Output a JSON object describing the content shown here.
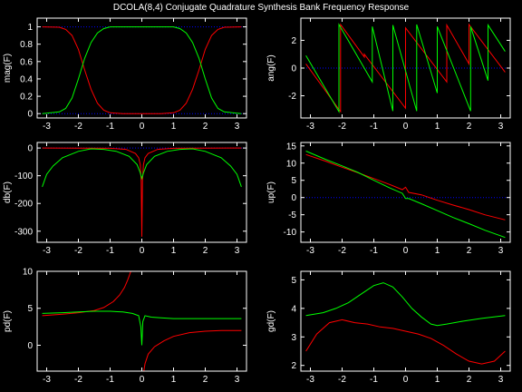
{
  "title": "DCOLA(8,4) Conjugate Quadrature Synthesis Bank Frequency Response",
  "colors": {
    "background": "#000000",
    "axes": "#ffffff",
    "ch0": "#ff0000",
    "ch1": "#00ff00",
    "ref": "#0000ff"
  },
  "chart_data": [
    {
      "id": "mag",
      "type": "line",
      "ylabel": "mag(F)",
      "xlim": [
        -3.3,
        3.3
      ],
      "ylim": [
        -0.05,
        1.1
      ],
      "xticks": [
        -3,
        -2,
        -1,
        0,
        1,
        2,
        3
      ],
      "yticks": [
        0,
        0.2,
        0.4,
        0.6,
        0.8,
        1
      ],
      "ref_lines": [
        0,
        1
      ],
      "series": [
        {
          "color": "red",
          "x": [
            -3.14,
            -2.6,
            -2.4,
            -2.2,
            -2.0,
            -1.8,
            -1.6,
            -1.4,
            -1.2,
            -1.0,
            -0.6,
            0,
            0.6,
            1.0,
            1.2,
            1.4,
            1.6,
            1.8,
            2.0,
            2.2,
            2.4,
            2.6,
            3.14
          ],
          "y": [
            1,
            0.995,
            0.97,
            0.9,
            0.74,
            0.5,
            0.28,
            0.12,
            0.04,
            0.01,
            0,
            0,
            0,
            0.01,
            0.04,
            0.12,
            0.28,
            0.5,
            0.74,
            0.9,
            0.97,
            0.995,
            1
          ]
        },
        {
          "color": "green",
          "x": [
            -3.14,
            -2.6,
            -2.4,
            -2.2,
            -2.0,
            -1.8,
            -1.6,
            -1.4,
            -1.2,
            -1.0,
            -0.6,
            0,
            0.6,
            1.0,
            1.2,
            1.4,
            1.6,
            1.8,
            2.0,
            2.2,
            2.4,
            2.6,
            3.14
          ],
          "y": [
            0,
            0.02,
            0.06,
            0.18,
            0.4,
            0.64,
            0.82,
            0.93,
            0.98,
            1,
            1,
            1,
            1,
            1,
            0.98,
            0.93,
            0.82,
            0.64,
            0.4,
            0.18,
            0.06,
            0.02,
            0
          ]
        }
      ]
    },
    {
      "id": "ang",
      "type": "line",
      "ylabel": "ang(F)",
      "xlim": [
        -3.3,
        3.3
      ],
      "ylim": [
        -3.6,
        3.6
      ],
      "xticks": [
        -3,
        -2,
        -1,
        0,
        1,
        2,
        3
      ],
      "yticks": [
        -2,
        0,
        2
      ],
      "ref_lines": [
        0
      ],
      "series": [
        {
          "color": "red",
          "x": [
            -3.14,
            -2.05,
            -2.05,
            -1.3,
            -1.3,
            0,
            0,
            1.3,
            1.3,
            2.0,
            2.0,
            3.14
          ],
          "y": [
            0.3,
            -3.14,
            3.14,
            0.8,
            1.0,
            -2.9,
            2.9,
            -1.0,
            3.1,
            0.3,
            3.14,
            -0.3
          ]
        },
        {
          "color": "green",
          "x": [
            -3.14,
            -2.1,
            -2.1,
            -1.05,
            -1.05,
            -0.4,
            -0.4,
            0.35,
            0.35,
            1.0,
            1.0,
            2.05,
            2.05,
            2.6,
            2.6,
            3.14
          ],
          "y": [
            0.9,
            -3.14,
            3.14,
            -1.0,
            3.0,
            -3.1,
            3.1,
            -3.1,
            3.14,
            -1.8,
            3.0,
            -3.1,
            3.0,
            -0.9,
            3.1,
            1.2
          ]
        }
      ]
    },
    {
      "id": "db",
      "type": "line",
      "ylabel": "db(F)",
      "xlim": [
        -3.3,
        3.3
      ],
      "ylim": [
        -340,
        20
      ],
      "xticks": [
        -3,
        -2,
        -1,
        0,
        1,
        2,
        3
      ],
      "yticks": [
        -300,
        -200,
        -100,
        0
      ],
      "ref_lines": [
        0
      ],
      "series": [
        {
          "color": "red",
          "x": [
            -3.14,
            -1,
            -0.5,
            -0.2,
            -0.1,
            -0.05,
            -0.02,
            0,
            0.02,
            0.05,
            0.1,
            0.2,
            0.5,
            1,
            3.14
          ],
          "y": [
            0,
            -1,
            -5,
            -20,
            -35,
            -60,
            -120,
            -320,
            -120,
            -60,
            -35,
            -20,
            -5,
            -1,
            0
          ]
        },
        {
          "color": "green",
          "x": [
            -3.14,
            -3.0,
            -2.8,
            -2.5,
            -2.0,
            -1.6,
            -1.2,
            -0.8,
            -0.4,
            -0.15,
            -0.05,
            0,
            0.05,
            0.15,
            0.4,
            0.8,
            1.2,
            1.6,
            2.0,
            2.5,
            2.8,
            3.0,
            3.14
          ],
          "y": [
            -140,
            -95,
            -65,
            -35,
            -12,
            -3,
            -5,
            -12,
            -30,
            -60,
            -90,
            -110,
            -90,
            -60,
            -30,
            -12,
            -5,
            -3,
            -12,
            -35,
            -65,
            -95,
            -140
          ]
        }
      ]
    },
    {
      "id": "up",
      "type": "line",
      "ylabel": "up(F)",
      "xlim": [
        -3.3,
        3.3
      ],
      "ylim": [
        -13,
        16
      ],
      "xticks": [
        -3,
        -2,
        -1,
        0,
        1,
        2,
        3
      ],
      "yticks": [
        -10,
        -5,
        0,
        5,
        10,
        15
      ],
      "ref_lines": [
        0
      ],
      "series": [
        {
          "color": "red",
          "x": [
            -3.14,
            -2.5,
            -2.0,
            -1.5,
            -1.0,
            -0.5,
            -0.1,
            0,
            0.1,
            0.5,
            1.0,
            1.5,
            2.0,
            2.5,
            3.14
          ],
          "y": [
            12.5,
            10.5,
            8.8,
            7.2,
            5.5,
            3.8,
            2.3,
            3.0,
            1.5,
            0.8,
            -0.8,
            -2.2,
            -3.5,
            -5.0,
            -6.5
          ]
        },
        {
          "color": "green",
          "x": [
            -3.14,
            -2.5,
            -2.0,
            -1.5,
            -1.0,
            -0.5,
            -0.1,
            0,
            0.1,
            0.5,
            1.0,
            1.5,
            2.0,
            2.5,
            3.14
          ],
          "y": [
            13.5,
            11,
            9.2,
            7.3,
            5.0,
            2.8,
            1.2,
            -0.3,
            -0.3,
            -1.8,
            -3.8,
            -5.8,
            -7.6,
            -9.5,
            -11.6
          ]
        }
      ]
    },
    {
      "id": "pd",
      "type": "line",
      "ylabel": "pd(F)",
      "xlim": [
        -3.3,
        3.3
      ],
      "ylim": [
        -3.5,
        10
      ],
      "xticks": [
        -3,
        -2,
        -1,
        0,
        1,
        2,
        3
      ],
      "yticks": [
        0,
        5,
        10
      ],
      "ref_lines": [],
      "series": [
        {
          "color": "red",
          "x": [
            -3.14,
            -2.5,
            -2.0,
            -1.5,
            -1.2,
            -0.9,
            -0.7,
            -0.55,
            -0.45,
            -0.38,
            -0.33
          ],
          "y": [
            4.0,
            4.2,
            4.4,
            4.7,
            5.1,
            5.9,
            6.8,
            7.8,
            8.8,
            9.6,
            10.2
          ]
        },
        {
          "color": "red",
          "x": [
            0.05,
            0.1,
            0.2,
            0.4,
            0.7,
            1.0,
            1.5,
            2.0,
            2.5,
            3.14
          ],
          "y": [
            -3.8,
            -2.5,
            -1.2,
            -0.2,
            0.6,
            1.2,
            1.7,
            1.9,
            2.0,
            2.0
          ]
        },
        {
          "color": "green",
          "x": [
            -3.14,
            -2.5,
            -2.0,
            -1.5,
            -1.0,
            -0.6,
            -0.3,
            -0.1,
            -0.03,
            0,
            0.03,
            0.1,
            0.3,
            0.6,
            1.0,
            1.5,
            2.0,
            2.5,
            3.14
          ],
          "y": [
            4.3,
            4.4,
            4.5,
            4.6,
            4.6,
            4.5,
            4.3,
            4.0,
            2.5,
            0.0,
            3.2,
            4.0,
            3.8,
            3.7,
            3.6,
            3.6,
            3.6,
            3.6,
            3.6
          ]
        }
      ]
    },
    {
      "id": "gd",
      "type": "line",
      "ylabel": "gd(F)",
      "xlim": [
        -3.3,
        3.3
      ],
      "ylim": [
        1.8,
        5.3
      ],
      "xticks": [
        -3,
        -2,
        -1,
        0,
        1,
        2,
        3
      ],
      "yticks": [
        2,
        3,
        4,
        5
      ],
      "ref_lines": [],
      "series": [
        {
          "color": "red",
          "x": [
            -3.14,
            -2.8,
            -2.4,
            -2.0,
            -1.6,
            -1.2,
            -0.8,
            -0.4,
            0,
            0.4,
            0.8,
            1.2,
            1.6,
            2.0,
            2.4,
            2.8,
            3.14
          ],
          "y": [
            2.5,
            3.1,
            3.5,
            3.6,
            3.5,
            3.45,
            3.35,
            3.3,
            3.2,
            3.1,
            2.95,
            2.7,
            2.4,
            2.15,
            2.05,
            2.15,
            2.5
          ]
        },
        {
          "color": "green",
          "x": [
            -3.14,
            -2.6,
            -2.2,
            -1.8,
            -1.4,
            -1.0,
            -0.7,
            -0.4,
            -0.1,
            0.2,
            0.5,
            0.8,
            1.0,
            1.3,
            1.8,
            2.4,
            3.14
          ],
          "y": [
            3.75,
            3.85,
            4.0,
            4.2,
            4.5,
            4.8,
            4.9,
            4.75,
            4.4,
            4.0,
            3.7,
            3.45,
            3.4,
            3.45,
            3.55,
            3.65,
            3.75
          ]
        }
      ]
    }
  ]
}
